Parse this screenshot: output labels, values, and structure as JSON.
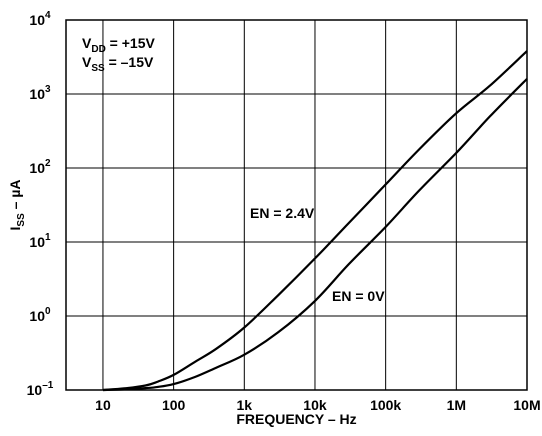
{
  "chart_data": {
    "type": "line",
    "xlabel": "FREQUENCY – Hz",
    "ylabel_main": "I",
    "ylabel_sub": "SS",
    "ylabel_rest": " – µA",
    "x_scale": "log",
    "y_scale": "log",
    "xlim": [
      3,
      10000000
    ],
    "ylim": [
      0.1,
      10000
    ],
    "grid": true,
    "x_ticks": [
      {
        "value": 10,
        "label": "10"
      },
      {
        "value": 100,
        "label": "100"
      },
      {
        "value": 1000,
        "label": "1k"
      },
      {
        "value": 10000,
        "label": "10k"
      },
      {
        "value": 100000,
        "label": "100k"
      },
      {
        "value": 1000000,
        "label": "1M"
      },
      {
        "value": 10000000,
        "label": "10M"
      }
    ],
    "y_ticks": [
      {
        "value": 0.1,
        "base": "10",
        "exp": "–1"
      },
      {
        "value": 1,
        "base": "10",
        "exp": "0"
      },
      {
        "value": 10,
        "base": "10",
        "exp": "1"
      },
      {
        "value": 100,
        "base": "10",
        "exp": "2"
      },
      {
        "value": 1000,
        "base": "10",
        "exp": "3"
      },
      {
        "value": 10000,
        "base": "10",
        "exp": "4"
      }
    ],
    "conditions": [
      {
        "main": "V",
        "sub": "DD",
        "rest": " = +15V"
      },
      {
        "main": "V",
        "sub": "SS",
        "rest": " = –15V"
      }
    ],
    "series": [
      {
        "name": "EN = 2.4V",
        "x": [
          10,
          20,
          40,
          60,
          100,
          200,
          400,
          1000,
          3000,
          10000,
          30000,
          100000,
          300000,
          1000000,
          3000000,
          10000000
        ],
        "y": [
          0.1,
          0.105,
          0.115,
          0.13,
          0.16,
          0.24,
          0.36,
          0.7,
          1.9,
          6,
          18,
          60,
          180,
          550,
          1300,
          3800
        ]
      },
      {
        "name": "EN = 0V",
        "x": [
          10,
          20,
          40,
          60,
          100,
          200,
          400,
          1000,
          3000,
          10000,
          30000,
          100000,
          300000,
          1000000,
          3000000,
          10000000
        ],
        "y": [
          0.1,
          0.102,
          0.106,
          0.11,
          0.12,
          0.15,
          0.2,
          0.3,
          0.6,
          1.6,
          5,
          16,
          50,
          160,
          500,
          1600
        ]
      }
    ],
    "annotations": [
      {
        "text": "EN = 2.4V",
        "series": 0
      },
      {
        "text": "EN = 0V",
        "series": 1
      }
    ]
  }
}
